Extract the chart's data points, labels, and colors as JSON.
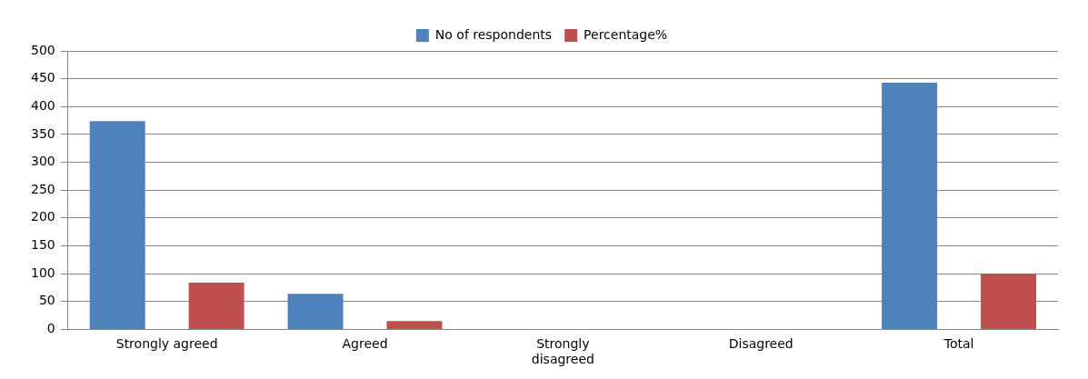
{
  "chart_data": {
    "type": "bar",
    "categories": [
      "Strongly agreed",
      "Agreed",
      "Strongly disagreed",
      "Disagreed",
      "Total"
    ],
    "series": [
      {
        "name": "No of respondents",
        "color": "#4f81bd",
        "values": [
          374,
          64,
          0,
          0,
          443
        ]
      },
      {
        "name": "Percentage%",
        "color": "#c0504d",
        "values": [
          84,
          15,
          0,
          0,
          100
        ]
      }
    ],
    "ylim": [
      0,
      500
    ],
    "yticks": [
      0,
      50,
      100,
      150,
      200,
      250,
      300,
      350,
      400,
      450,
      500
    ],
    "grid": "y",
    "legend": "top"
  }
}
